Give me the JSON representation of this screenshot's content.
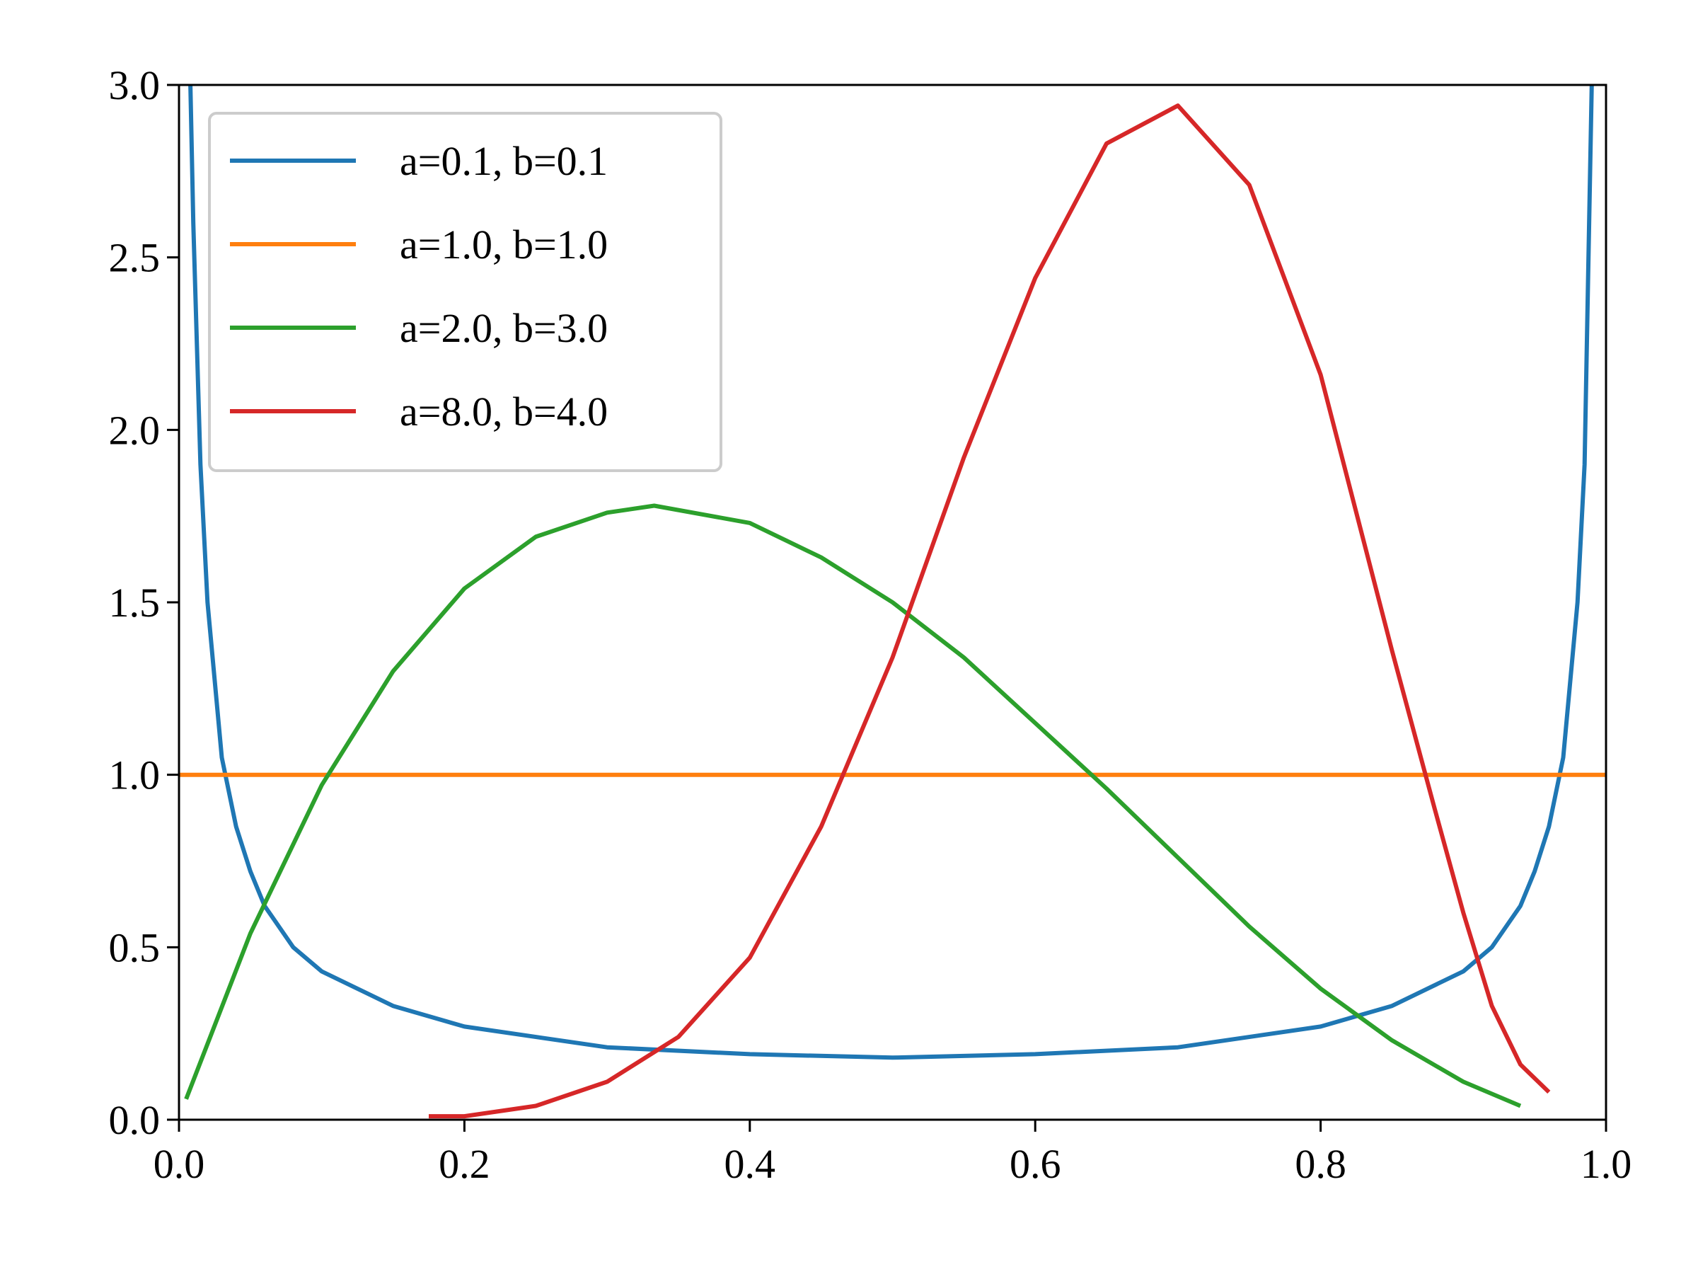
{
  "chart_data": {
    "type": "line",
    "title": "",
    "xlabel": "",
    "ylabel": "",
    "xlim": [
      0.0,
      1.0
    ],
    "ylim": [
      0.0,
      3.0
    ],
    "grid": false,
    "legend_position": "top-left",
    "x_ticks": [
      "0.0",
      "0.2",
      "0.4",
      "0.6",
      "0.8",
      "1.0"
    ],
    "y_ticks": [
      "0.0",
      "0.5",
      "1.0",
      "1.5",
      "2.0",
      "2.5",
      "3.0"
    ],
    "series": [
      {
        "name": "a=0.1, b=0.1",
        "color": "#1f77b4",
        "x": [
          0.008,
          0.01,
          0.015,
          0.02,
          0.03,
          0.04,
          0.05,
          0.06,
          0.08,
          0.1,
          0.15,
          0.2,
          0.3,
          0.4,
          0.5,
          0.6,
          0.7,
          0.8,
          0.85,
          0.9,
          0.92,
          0.94,
          0.95,
          0.96,
          0.97,
          0.98,
          0.985,
          0.99
        ],
        "y": [
          3.0,
          2.6,
          1.9,
          1.5,
          1.05,
          0.85,
          0.72,
          0.62,
          0.5,
          0.43,
          0.33,
          0.27,
          0.21,
          0.19,
          0.18,
          0.19,
          0.21,
          0.27,
          0.33,
          0.43,
          0.5,
          0.62,
          0.72,
          0.85,
          1.05,
          1.5,
          1.9,
          3.0
        ]
      },
      {
        "name": "a=1.0, b=1.0",
        "color": "#ff7f0e",
        "x": [
          0.0,
          1.0
        ],
        "y": [
          1.0,
          1.0
        ]
      },
      {
        "name": "a=2.0, b=3.0",
        "color": "#2ca02c",
        "x": [
          0.005,
          0.05,
          0.1,
          0.15,
          0.2,
          0.25,
          0.3,
          0.333,
          0.4,
          0.45,
          0.5,
          0.55,
          0.6,
          0.65,
          0.7,
          0.75,
          0.8,
          0.85,
          0.9,
          0.94
        ],
        "y": [
          0.06,
          0.54,
          0.97,
          1.3,
          1.54,
          1.69,
          1.76,
          1.78,
          1.73,
          1.63,
          1.5,
          1.34,
          1.15,
          0.96,
          0.76,
          0.56,
          0.38,
          0.23,
          0.11,
          0.04
        ]
      },
      {
        "name": "a=8.0, b=4.0",
        "color": "#d62728",
        "x": [
          0.175,
          0.2,
          0.25,
          0.3,
          0.35,
          0.4,
          0.45,
          0.5,
          0.55,
          0.6,
          0.65,
          0.7,
          0.75,
          0.8,
          0.85,
          0.88,
          0.9,
          0.92,
          0.94,
          0.96
        ],
        "y": [
          0.01,
          0.01,
          0.04,
          0.11,
          0.24,
          0.47,
          0.85,
          1.34,
          1.92,
          2.44,
          2.83,
          2.94,
          2.71,
          2.16,
          1.36,
          0.9,
          0.6,
          0.33,
          0.16,
          0.08
        ]
      }
    ]
  }
}
